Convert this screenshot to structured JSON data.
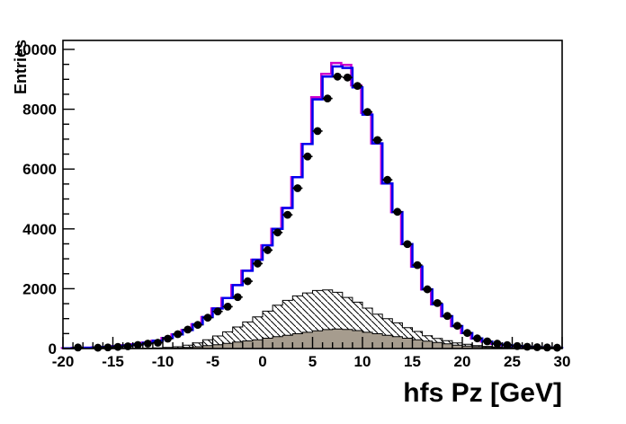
{
  "plot": {
    "background": "#ffffff",
    "frame_color": "#000000",
    "marker": {
      "shape": "filled-circle",
      "color": "#000000"
    },
    "colors": {
      "mc_line_blue": "#0000ee",
      "mc_line_magenta": "#cc00cc",
      "background_hatched_fill": "hatch-diagonal",
      "background_gray_fill": "#a69c8e",
      "hatch_line_color": "#000000"
    }
  },
  "axes": {
    "x": {
      "title": "hfs Pz [GeV]",
      "min": -20,
      "max": 30,
      "major_ticks": [
        -20,
        -15,
        -10,
        -5,
        0,
        5,
        10,
        15,
        20,
        25,
        30
      ],
      "minor_step": 1
    },
    "y": {
      "title": "Entries",
      "min": 0,
      "max": 10300,
      "major_ticks": [
        0,
        2000,
        4000,
        6000,
        8000,
        10000
      ],
      "minor_step": 500
    }
  },
  "chart_data": {
    "type": "bar",
    "subtype": "histogram-overlay",
    "title": "",
    "xlabel": "hfs Pz [GeV]",
    "ylabel": "Entries",
    "xlim": [
      -20,
      30
    ],
    "ylim": [
      0,
      10300
    ],
    "grid": false,
    "legend": "none",
    "bin_width": 1,
    "bin_centers": [
      -19.5,
      -18.5,
      -17.5,
      -16.5,
      -15.5,
      -14.5,
      -13.5,
      -12.5,
      -11.5,
      -10.5,
      -9.5,
      -8.5,
      -7.5,
      -6.5,
      -5.5,
      -4.5,
      -3.5,
      -2.5,
      -1.5,
      -0.5,
      0.5,
      1.5,
      2.5,
      3.5,
      4.5,
      5.5,
      6.5,
      7.5,
      8.5,
      9.5,
      10.5,
      11.5,
      12.5,
      13.5,
      14.5,
      15.5,
      16.5,
      17.5,
      18.5,
      19.5,
      20.5,
      21.5,
      22.5,
      23.5,
      24.5,
      25.5,
      26.5,
      27.5,
      28.5,
      29.5
    ],
    "series": [
      {
        "name": "mc-total-magenta",
        "style": "step-line",
        "color": "#cc00cc",
        "values": [
          10,
          20,
          28,
          38,
          52,
          75,
          105,
          145,
          195,
          260,
          350,
          470,
          620,
          810,
          1050,
          1340,
          1690,
          2120,
          2600,
          2970,
          3450,
          4000,
          4700,
          5730,
          6840,
          8400,
          9180,
          9545,
          9480,
          8800,
          7880,
          6860,
          5520,
          4560,
          3490,
          2740,
          1980,
          1480,
          1080,
          750,
          520,
          340,
          230,
          160,
          112,
          80,
          58,
          42,
          30,
          22
        ]
      },
      {
        "name": "mc-total-blue",
        "style": "step-line",
        "color": "#0000ee",
        "values": [
          10,
          20,
          28,
          38,
          52,
          75,
          105,
          145,
          195,
          260,
          350,
          470,
          620,
          810,
          1050,
          1340,
          1690,
          2120,
          2600,
          2970,
          3450,
          4000,
          4700,
          5730,
          6840,
          8330,
          9090,
          9430,
          9380,
          8730,
          7820,
          6860,
          5520,
          4560,
          3490,
          2740,
          1980,
          1480,
          1080,
          750,
          520,
          340,
          230,
          160,
          112,
          80,
          58,
          42,
          30,
          22
        ]
      },
      {
        "name": "background-hatched",
        "style": "filled-hatched",
        "values": [
          0,
          0,
          0,
          0,
          0,
          0,
          4,
          7,
          12,
          20,
          35,
          60,
          110,
          190,
          290,
          420,
          560,
          720,
          890,
          1060,
          1250,
          1450,
          1610,
          1760,
          1860,
          1940,
          1960,
          1880,
          1710,
          1550,
          1350,
          1150,
          1000,
          860,
          700,
          570,
          430,
          340,
          260,
          190,
          140,
          100,
          72,
          50,
          35,
          24,
          16,
          11,
          7,
          5
        ]
      },
      {
        "name": "background-gray",
        "style": "filled-solid",
        "color": "#a69c8e",
        "values": [
          0,
          0,
          0,
          0,
          0,
          0,
          0,
          0,
          2,
          4,
          8,
          18,
          35,
          60,
          95,
          130,
          170,
          215,
          255,
          295,
          345,
          395,
          445,
          495,
          545,
          595,
          635,
          655,
          640,
          600,
          545,
          495,
          445,
          395,
          345,
          295,
          245,
          200,
          155,
          115,
          85,
          60,
          42,
          28,
          18,
          12,
          8,
          5,
          3,
          2
        ]
      },
      {
        "name": "data-points",
        "style": "markers",
        "color": "#000000",
        "values": [
          null,
          35,
          null,
          28,
          38,
          55,
          75,
          120,
          165,
          195,
          330,
          480,
          635,
          790,
          1030,
          1240,
          1400,
          1720,
          2250,
          2840,
          3290,
          3880,
          4470,
          5360,
          6420,
          7270,
          8360,
          9090,
          9060,
          8780,
          7910,
          6970,
          5640,
          4570,
          3490,
          2790,
          1980,
          1520,
          1090,
          760,
          520,
          340,
          240,
          165,
          115,
          82,
          60,
          45,
          35,
          28
        ]
      }
    ]
  }
}
